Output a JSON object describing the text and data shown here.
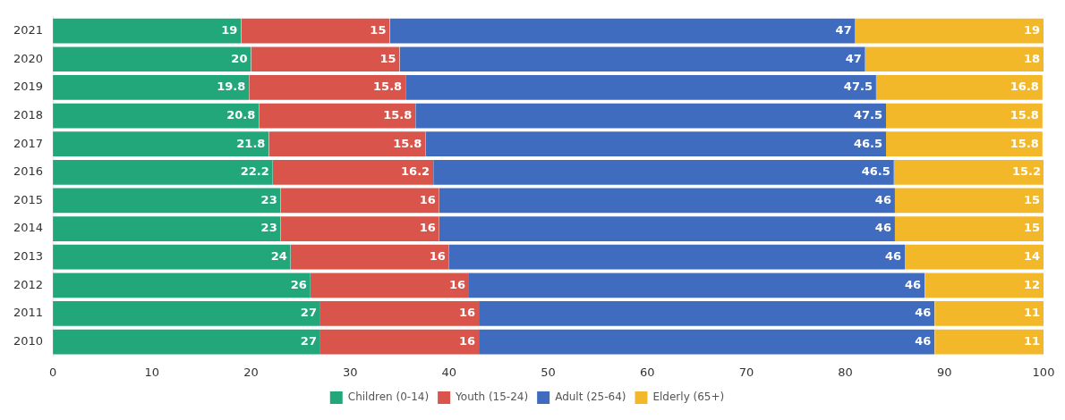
{
  "chart_data": {
    "type": "bar",
    "orientation": "horizontal",
    "stacked": true,
    "categories": [
      "2021",
      "2020",
      "2019",
      "2018",
      "2017",
      "2016",
      "2015",
      "2014",
      "2013",
      "2012",
      "2011",
      "2010"
    ],
    "series": [
      {
        "name": "Children (0-14)",
        "color": "#22a77a",
        "values": [
          19,
          20,
          19.8,
          20.8,
          21.8,
          22.2,
          23,
          23,
          24,
          26,
          27,
          27
        ]
      },
      {
        "name": "Youth (15-24)",
        "color": "#d9544a",
        "values": [
          15,
          15,
          15.8,
          15.8,
          15.8,
          16.2,
          16,
          16,
          16,
          16,
          16,
          16
        ]
      },
      {
        "name": "Adult (25-64)",
        "color": "#3f6cbf",
        "values": [
          47,
          47,
          47.5,
          47.5,
          46.5,
          46.5,
          46,
          46,
          46,
          46,
          46,
          46
        ]
      },
      {
        "name": "Elderly (65+)",
        "color": "#f3b82a",
        "values": [
          19,
          18,
          16.8,
          15.8,
          15.8,
          15.2,
          15,
          15,
          14,
          12,
          11,
          11
        ]
      }
    ],
    "xlim": [
      0,
      100
    ],
    "xticks": [
      0,
      10,
      20,
      30,
      40,
      50,
      60,
      70,
      80,
      90,
      100
    ],
    "grid": false,
    "legend": "bottom",
    "data_labels": true
  }
}
